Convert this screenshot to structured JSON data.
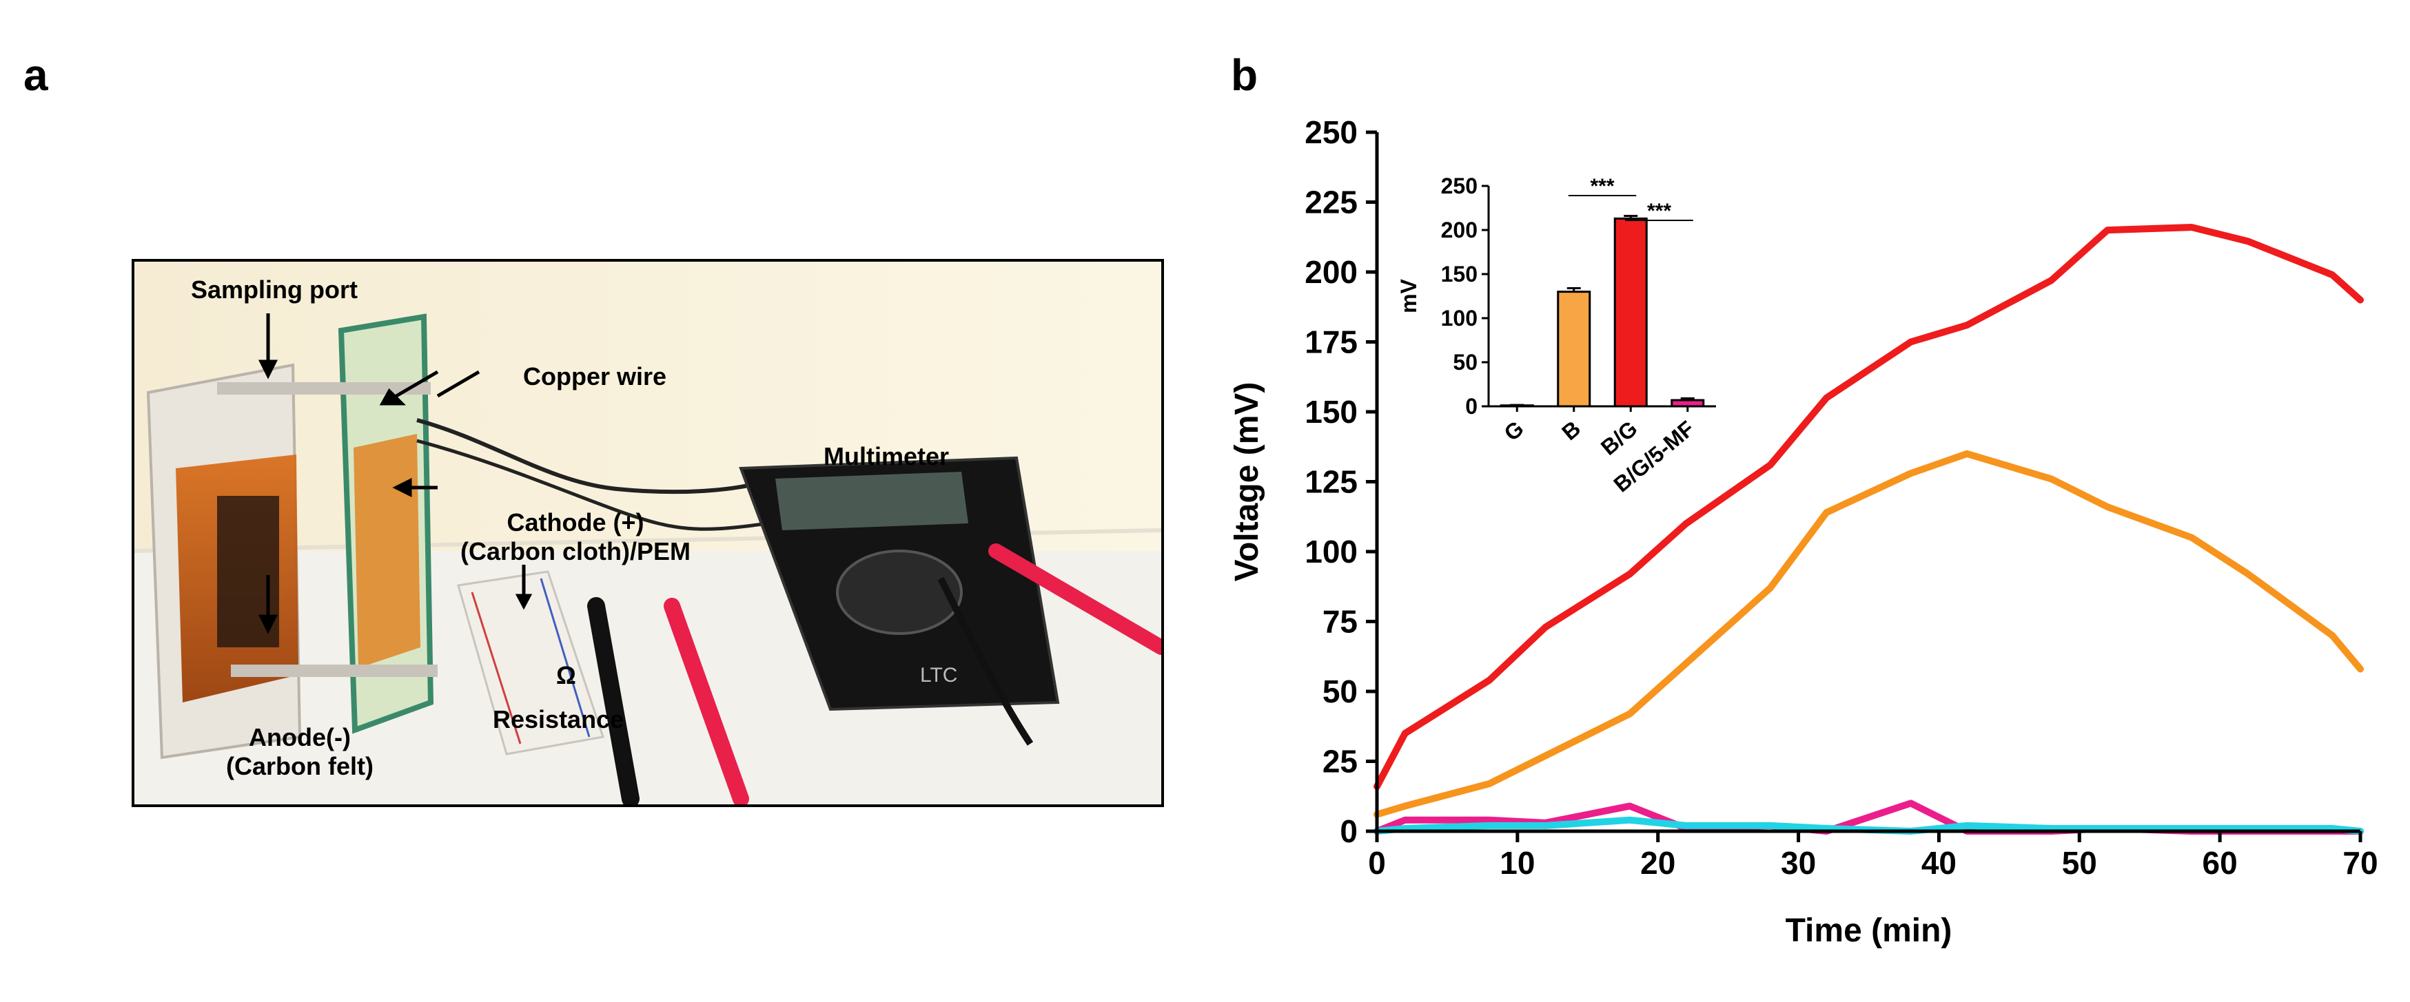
{
  "panel_a": {
    "letter": "a",
    "labels": {
      "sampling_port": "Sampling port",
      "copper_wire": "Copper wire",
      "multimeter": "Multimeter",
      "cathode_line1": "Cathode (+)",
      "cathode_line2": "(Carbon cloth)/PEM",
      "omega": "Ω",
      "resistance": "Resistance",
      "anode_line1": "Anode(-)",
      "anode_line2": "(Carbon felt)"
    },
    "multimeter_brand": "LTC"
  },
  "panel_b": {
    "letter": "b"
  },
  "chart_data": [
    {
      "type": "line",
      "xlabel": "Time (min)",
      "ylabel": "Voltage (mV)",
      "xlim": [
        0,
        70
      ],
      "ylim": [
        0,
        250
      ],
      "xticks": [
        0,
        10,
        20,
        30,
        40,
        50,
        60,
        70
      ],
      "yticks": [
        0,
        25,
        50,
        75,
        100,
        125,
        150,
        175,
        200,
        225,
        250
      ],
      "series": [
        {
          "name": "B/G",
          "color": "#ee1c1c",
          "x": [
            0,
            2,
            8,
            12,
            18,
            22,
            28,
            32,
            38,
            42,
            48,
            52,
            58,
            62,
            68,
            70
          ],
          "y": [
            16,
            35,
            54,
            73,
            92,
            110,
            131,
            155,
            175,
            181,
            197,
            215,
            216,
            211,
            199,
            190
          ]
        },
        {
          "name": "B",
          "color": "#f7941d",
          "x": [
            0,
            2,
            8,
            12,
            18,
            22,
            28,
            32,
            38,
            42,
            48,
            52,
            58,
            62,
            68,
            70
          ],
          "y": [
            6,
            9,
            17,
            27,
            42,
            60,
            87,
            114,
            128,
            135,
            126,
            116,
            105,
            92,
            70,
            58
          ]
        },
        {
          "name": "G",
          "color": "#22d3e6",
          "x": [
            0,
            2,
            8,
            12,
            18,
            22,
            28,
            32,
            38,
            42,
            48,
            52,
            58,
            62,
            68,
            70
          ],
          "y": [
            0,
            1,
            2,
            2,
            4,
            2,
            2,
            1,
            0,
            2,
            1,
            1,
            1,
            1,
            1,
            0
          ]
        },
        {
          "name": "B/G/5-MF",
          "color": "#ec1e8c",
          "x": [
            0,
            2,
            8,
            12,
            18,
            22,
            28,
            32,
            38,
            42,
            48,
            52,
            58,
            62,
            68,
            70
          ],
          "y": [
            0,
            4,
            4,
            3,
            9,
            1,
            2,
            0,
            10,
            0,
            0,
            1,
            0,
            0,
            0,
            0
          ]
        }
      ]
    },
    {
      "type": "bar",
      "title": "inset",
      "ylabel": "mV",
      "ylim": [
        0,
        250
      ],
      "yticks": [
        0,
        50,
        100,
        150,
        200,
        250
      ],
      "categories": [
        "G",
        "B",
        "B/G",
        "B/G/5-MF"
      ],
      "values": [
        1,
        130,
        213,
        7
      ],
      "errors": [
        0.5,
        4,
        3,
        2
      ],
      "colors": [
        "#ffffff",
        "#f7a545",
        "#ee1c1c",
        "#ec1e8c"
      ],
      "significance": [
        {
          "between": [
            "B",
            "B/G"
          ],
          "label": "***"
        },
        {
          "between": [
            "B/G",
            "B/G/5-MF"
          ],
          "label": "***"
        }
      ]
    }
  ]
}
